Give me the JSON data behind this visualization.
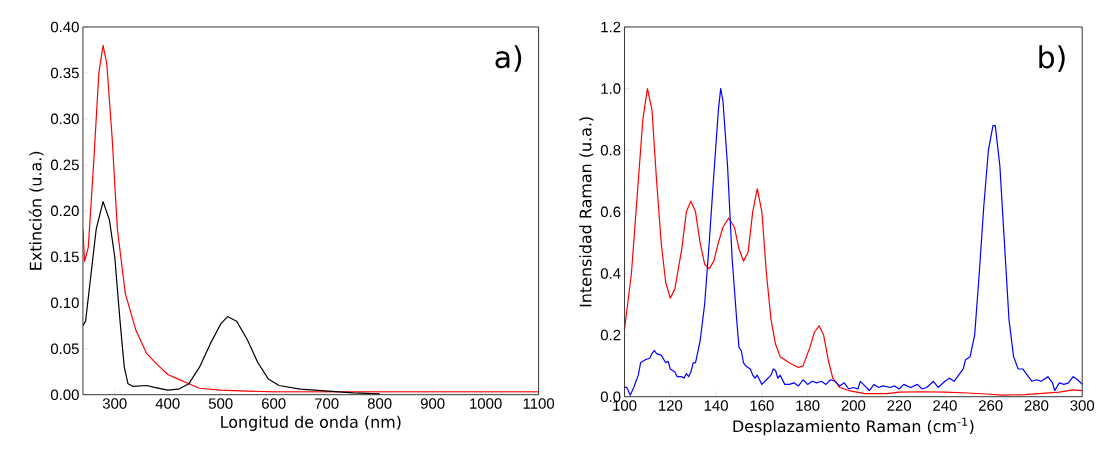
{
  "chart_data": [
    {
      "type": "line",
      "xlabel": "Longitud de onda  (nm)",
      "ylabel": "Extinción (u.a.)",
      "annotations": [
        "a)"
      ],
      "xlim": [
        240,
        1100
      ],
      "ylim": [
        0,
        0.4
      ],
      "xticks": [
        300,
        400,
        500,
        600,
        700,
        800,
        900,
        1000,
        1100
      ],
      "yticks": [
        {
          "value": 0,
          "label": "0.00"
        },
        {
          "value": 0.05,
          "label": "0.05"
        },
        {
          "value": 0.1,
          "label": "0.10"
        },
        {
          "value": 0.15,
          "label": "0.15"
        },
        {
          "value": 0.2,
          "label": "0.20"
        },
        {
          "value": 0.25,
          "label": "0.25"
        },
        {
          "value": 0.3,
          "label": "0.30"
        },
        {
          "value": 0.35,
          "label": "0.35"
        },
        {
          "value": 0.4,
          "label": "0.40"
        }
      ],
      "series": [
        {
          "color": "#ff0000",
          "x": [
            240,
            243,
            250,
            260,
            270,
            278,
            285,
            295,
            305,
            320,
            340,
            360,
            380,
            400,
            420,
            440,
            460,
            500,
            550,
            600,
            700,
            800,
            1100
          ],
          "values": [
            0.18,
            0.145,
            0.16,
            0.25,
            0.35,
            0.38,
            0.36,
            0.28,
            0.18,
            0.11,
            0.07,
            0.045,
            0.033,
            0.022,
            0.017,
            0.012,
            0.007,
            0.005,
            0.004,
            0.003,
            0.003,
            0.003,
            0.003
          ]
        },
        {
          "color": "#000000",
          "x": [
            240,
            245,
            255,
            265,
            278,
            290,
            300,
            310,
            318,
            325,
            335,
            360,
            375,
            400,
            420,
            440,
            460,
            480,
            500,
            513,
            530,
            550,
            570,
            590,
            610,
            650,
            700,
            750,
            800
          ],
          "values": [
            0.075,
            0.08,
            0.13,
            0.18,
            0.21,
            0.19,
            0.15,
            0.08,
            0.03,
            0.012,
            0.009,
            0.01,
            0.008,
            0.005,
            0.006,
            0.012,
            0.03,
            0.055,
            0.077,
            0.085,
            0.08,
            0.06,
            0.035,
            0.017,
            0.01,
            0.006,
            0.004,
            0.002,
            0.001
          ]
        }
      ]
    },
    {
      "type": "line",
      "xlabel": "Desplazamiento Raman (cm$^{-1}$)",
      "ylabel": "Intensidad Raman  (u.a.)",
      "annotations": [
        "b)"
      ],
      "xlim": [
        100,
        300
      ],
      "ylim": [
        0,
        1.2
      ],
      "xticks": [
        100,
        120,
        140,
        160,
        180,
        200,
        220,
        240,
        260,
        280,
        300
      ],
      "yticks": [
        {
          "value": 0,
          "label": "0.0"
        },
        {
          "value": 0.2,
          "label": "0.2"
        },
        {
          "value": 0.4,
          "label": "0.4"
        },
        {
          "value": 0.6,
          "label": "0.6"
        },
        {
          "value": 0.8,
          "label": "0.8"
        },
        {
          "value": 1,
          "label": "1.0"
        },
        {
          "value": 1.2,
          "label": "1.2"
        }
      ],
      "series": [
        {
          "color": "#ff0000",
          "x": [
            100,
            103,
            106,
            108,
            110,
            112,
            114,
            116,
            118,
            120,
            122,
            125,
            127,
            129,
            131,
            133,
            135,
            137,
            139,
            141,
            143,
            145.5,
            148,
            150,
            152,
            154,
            156,
            158,
            160,
            162,
            164,
            166,
            168,
            172,
            176,
            178,
            181,
            183,
            185,
            187,
            189,
            191,
            194,
            198,
            205,
            215,
            220,
            230,
            240,
            250,
            260,
            265,
            275,
            290,
            296,
            300
          ],
          "values": [
            0.22,
            0.4,
            0.7,
            0.9,
            1.0,
            0.93,
            0.7,
            0.5,
            0.37,
            0.32,
            0.35,
            0.48,
            0.6,
            0.635,
            0.6,
            0.5,
            0.43,
            0.415,
            0.44,
            0.5,
            0.55,
            0.58,
            0.55,
            0.48,
            0.44,
            0.47,
            0.6,
            0.675,
            0.6,
            0.4,
            0.25,
            0.17,
            0.13,
            0.11,
            0.095,
            0.1,
            0.16,
            0.21,
            0.23,
            0.2,
            0.12,
            0.06,
            0.03,
            0.02,
            0.01,
            0.01,
            0.015,
            0.016,
            0.015,
            0.012,
            0.008,
            0.005,
            0.007,
            0.015,
            0.022,
            0.02
          ]
        },
        {
          "color": "#0000ff",
          "x": [
            100,
            101,
            102.5,
            104,
            106,
            107,
            109,
            111,
            112,
            113,
            114,
            116,
            118,
            119,
            120,
            122,
            123,
            125,
            126,
            127,
            128,
            129,
            130,
            131,
            133,
            135,
            137,
            139,
            141,
            142,
            143,
            145,
            147,
            149,
            150,
            151,
            152,
            153,
            155,
            156,
            157,
            158,
            160,
            162,
            164,
            165,
            166,
            167,
            168,
            170,
            172,
            174,
            176,
            178,
            180,
            182,
            184,
            186,
            188,
            190,
            192,
            194,
            196,
            198,
            200,
            202,
            203,
            205,
            207,
            209,
            211,
            213,
            216,
            218,
            220,
            222,
            225,
            228,
            230,
            232,
            235,
            237,
            240,
            242,
            244,
            246,
            248,
            249,
            251,
            253,
            255,
            257,
            259,
            261,
            262,
            264,
            266,
            268,
            270,
            272,
            274,
            276,
            278,
            280,
            282,
            285,
            287,
            288,
            290,
            292,
            294,
            296,
            298,
            300
          ],
          "values": [
            0.03,
            0.03,
            0.005,
            0.03,
            0.07,
            0.11,
            0.12,
            0.125,
            0.14,
            0.15,
            0.14,
            0.135,
            0.11,
            0.115,
            0.09,
            0.08,
            0.065,
            0.065,
            0.06,
            0.075,
            0.065,
            0.08,
            0.11,
            0.11,
            0.18,
            0.3,
            0.5,
            0.72,
            0.93,
            1.0,
            0.96,
            0.75,
            0.45,
            0.25,
            0.16,
            0.15,
            0.11,
            0.1,
            0.09,
            0.07,
            0.06,
            0.07,
            0.04,
            0.055,
            0.07,
            0.09,
            0.085,
            0.06,
            0.07,
            0.04,
            0.04,
            0.045,
            0.035,
            0.055,
            0.04,
            0.05,
            0.045,
            0.05,
            0.04,
            0.055,
            0.05,
            0.035,
            0.045,
            0.025,
            0.03,
            0.025,
            0.05,
            0.035,
            0.02,
            0.04,
            0.03,
            0.035,
            0.03,
            0.035,
            0.025,
            0.04,
            0.03,
            0.04,
            0.025,
            0.03,
            0.05,
            0.03,
            0.05,
            0.06,
            0.05,
            0.07,
            0.09,
            0.12,
            0.13,
            0.2,
            0.4,
            0.62,
            0.8,
            0.88,
            0.88,
            0.75,
            0.5,
            0.25,
            0.13,
            0.09,
            0.09,
            0.07,
            0.05,
            0.055,
            0.05,
            0.065,
            0.045,
            0.02,
            0.045,
            0.04,
            0.045,
            0.065,
            0.055,
            0.04
          ]
        }
      ]
    }
  ]
}
